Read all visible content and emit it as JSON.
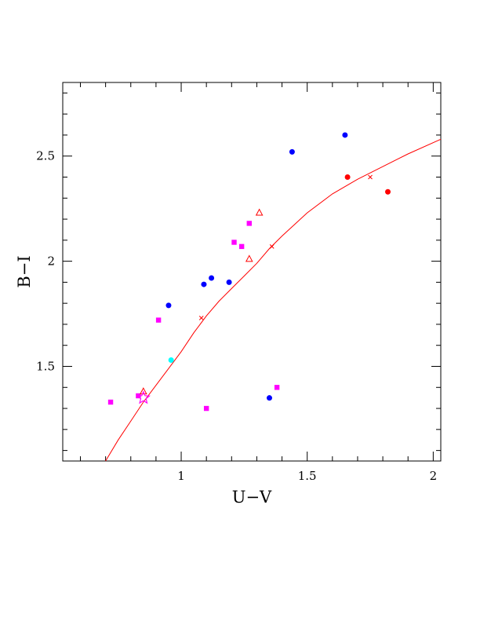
{
  "chart_data": {
    "type": "scatter",
    "xlabel": "U−V",
    "ylabel": "B−I",
    "xlim": [
      0.53,
      2.03
    ],
    "ylim": [
      1.05,
      2.85
    ],
    "x_ticks": [
      1,
      1.5,
      2
    ],
    "x_tick_labels": [
      "1",
      "1.5",
      "2"
    ],
    "y_ticks": [
      1.5,
      2,
      2.5
    ],
    "y_tick_labels": [
      "1.5",
      "2",
      "2.5"
    ],
    "grid": false,
    "colors": {
      "blue": "#0000ff",
      "magenta": "#ff00ff",
      "red": "#ff0000",
      "cyan": "#00ffff",
      "curve": "#ff0000"
    },
    "series": [
      {
        "marker": "filled-circle",
        "color": "#0000ff",
        "points": [
          [
            0.95,
            1.79
          ],
          [
            1.09,
            1.89
          ],
          [
            1.12,
            1.92
          ],
          [
            1.19,
            1.9
          ],
          [
            1.35,
            1.35
          ],
          [
            1.44,
            2.52
          ],
          [
            1.65,
            2.6
          ]
        ]
      },
      {
        "marker": "filled-square",
        "color": "#ff00ff",
        "points": [
          [
            0.72,
            1.33
          ],
          [
            0.83,
            1.36
          ],
          [
            0.91,
            1.72
          ],
          [
            1.1,
            1.3
          ],
          [
            1.21,
            2.09
          ],
          [
            1.24,
            2.07
          ],
          [
            1.27,
            2.18
          ],
          [
            1.38,
            1.4
          ]
        ]
      },
      {
        "marker": "filled-circle",
        "color": "#ff0000",
        "points": [
          [
            1.66,
            2.4
          ],
          [
            1.82,
            2.33
          ]
        ]
      },
      {
        "marker": "open-triangle",
        "color": "#ff0000",
        "points": [
          [
            0.85,
            1.38
          ],
          [
            1.27,
            2.01
          ],
          [
            1.31,
            2.23
          ]
        ]
      },
      {
        "marker": "filled-circle",
        "color": "#00ffff",
        "points": [
          [
            0.96,
            1.53
          ]
        ]
      },
      {
        "marker": "open-star",
        "color": "#ff00ff",
        "points": [
          [
            0.85,
            1.35
          ]
        ]
      },
      {
        "marker": "cross",
        "color": "#ff0000",
        "points": [
          [
            1.08,
            1.73
          ],
          [
            1.36,
            2.07
          ],
          [
            1.75,
            2.4
          ]
        ]
      }
    ],
    "curve": {
      "color": "#ff0000",
      "points": [
        [
          0.7,
          1.05
        ],
        [
          0.75,
          1.15
        ],
        [
          0.8,
          1.24
        ],
        [
          0.85,
          1.33
        ],
        [
          0.9,
          1.41
        ],
        [
          0.95,
          1.49
        ],
        [
          1.0,
          1.57
        ],
        [
          1.05,
          1.66
        ],
        [
          1.1,
          1.74
        ],
        [
          1.15,
          1.81
        ],
        [
          1.2,
          1.87
        ],
        [
          1.25,
          1.93
        ],
        [
          1.3,
          1.99
        ],
        [
          1.35,
          2.06
        ],
        [
          1.4,
          2.12
        ],
        [
          1.5,
          2.23
        ],
        [
          1.6,
          2.32
        ],
        [
          1.7,
          2.39
        ],
        [
          1.8,
          2.45
        ],
        [
          1.9,
          2.51
        ],
        [
          2.03,
          2.58
        ]
      ]
    }
  }
}
